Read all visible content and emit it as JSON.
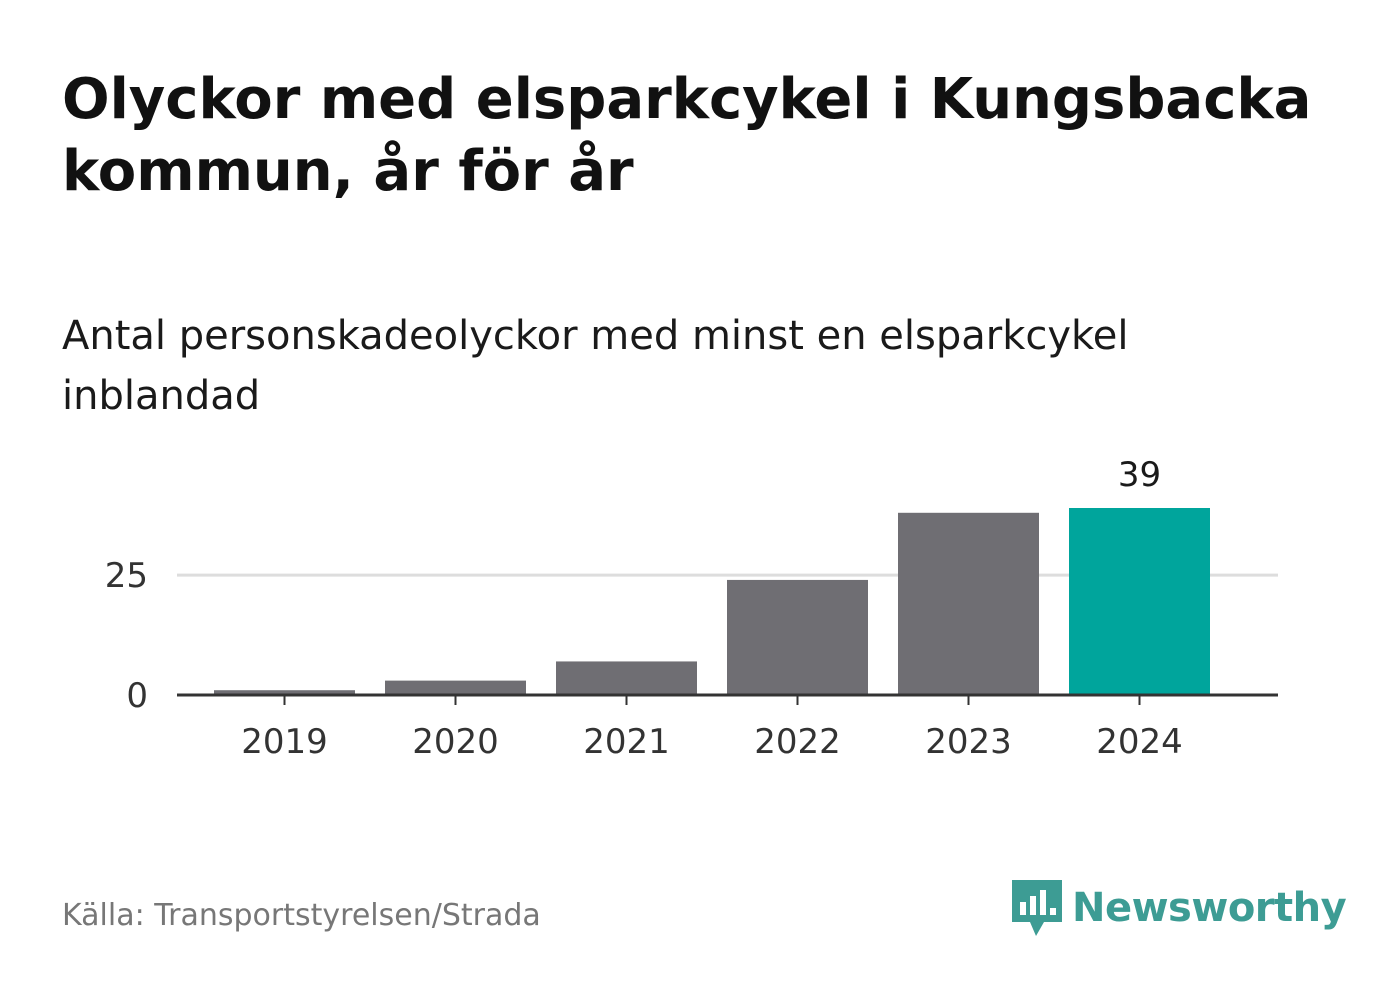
{
  "header": {
    "title": "Olyckor med elsparkcykel i Kungsbacka kommun, år för år",
    "subtitle": "Antal personskadeolyckor med minst en elsparkcykel inblandad"
  },
  "footer": {
    "source": "Källa: Transportstyrelsen/Strada",
    "brand": "Newsworthy"
  },
  "colors": {
    "bar_default": "#6f6e73",
    "bar_highlight": "#00a59c",
    "brand": "#3d9c94",
    "grid": "#dddddd",
    "axis": "#333333"
  },
  "icons": {
    "brand_logo": "bar-chart-speech-bubble-icon"
  },
  "chart_data": {
    "type": "bar",
    "title": "Olyckor med elsparkcykel i Kungsbacka kommun, år för år",
    "subtitle": "Antal personskadeolyckor med minst en elsparkcykel inblandad",
    "xlabel": "",
    "ylabel": "",
    "categories": [
      "2019",
      "2020",
      "2021",
      "2022",
      "2023",
      "2024"
    ],
    "values": [
      1,
      3,
      7,
      24,
      38,
      39
    ],
    "ylim": [
      0,
      39
    ],
    "yticks": [
      0,
      25
    ],
    "grid": true,
    "highlight_index": 5,
    "data_labels": [
      null,
      null,
      null,
      null,
      null,
      "39"
    ]
  }
}
